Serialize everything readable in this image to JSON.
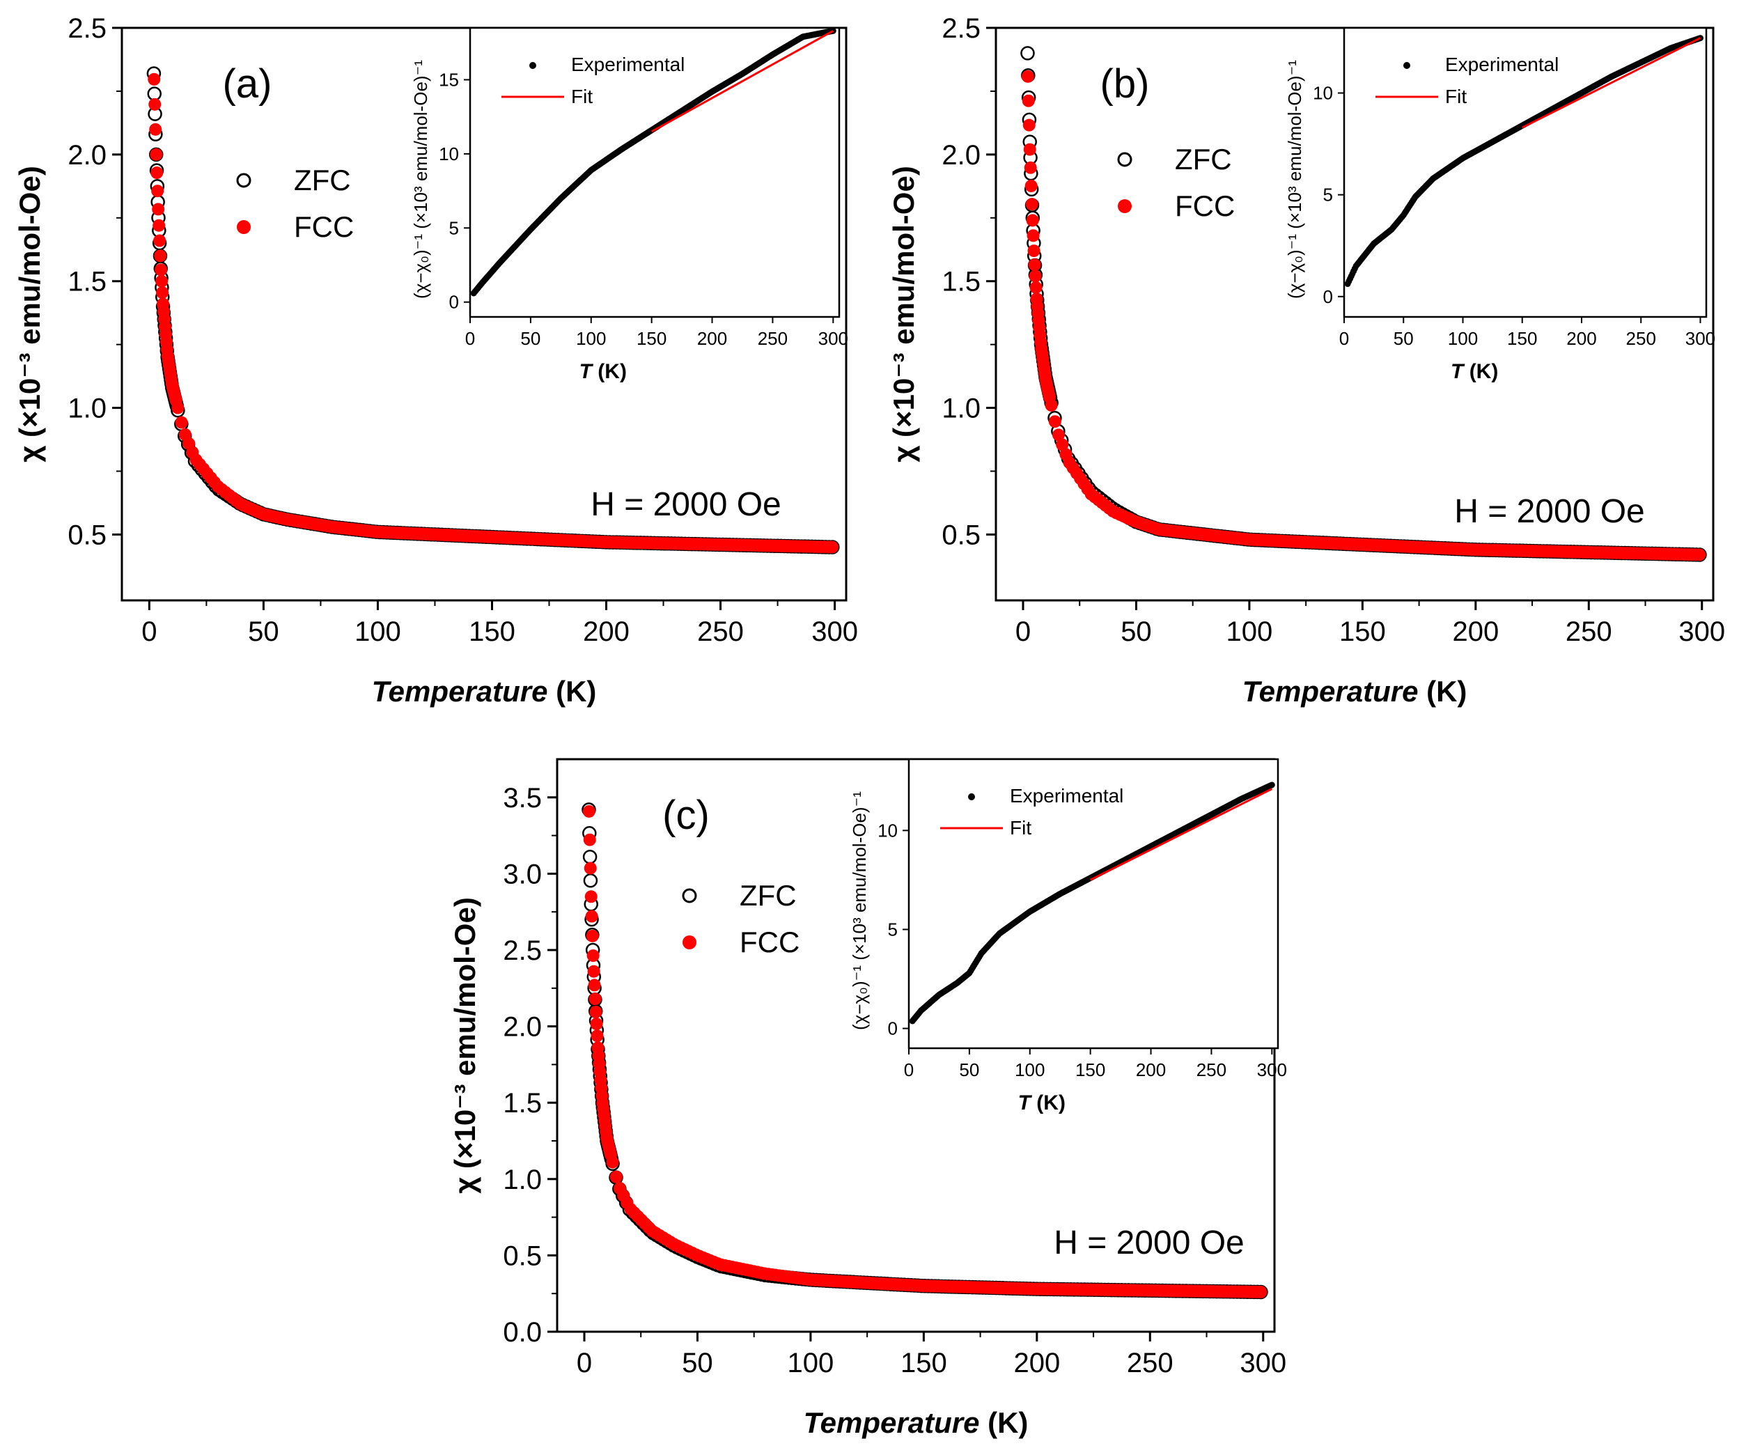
{
  "figure": {
    "colors": {
      "zfc": "#000000",
      "fcc": "#ff0000",
      "experimental": "#000000",
      "fit": "#ff0000"
    },
    "panels": [
      {
        "label": "(a)",
        "field_text": "H = 2000 Oe",
        "xlabel_italic": "Temperature",
        "xlabel_unit": "(K)",
        "ylabel": "χ (×10⁻³ emu/mol-Oe)",
        "legend": [
          "ZFC",
          "FCC"
        ],
        "chart_data": {
          "type": "scatter",
          "x_range": [
            -12,
            305
          ],
          "y_range": [
            0.24,
            2.5
          ],
          "x_ticks": [
            0,
            50,
            100,
            150,
            200,
            250,
            300
          ],
          "y_ticks": [
            0.5,
            1.0,
            1.5,
            2.0,
            2.5
          ],
          "y_tick_labels": [
            "0.5",
            "1.0",
            "1.5",
            "2.0",
            "2.5"
          ],
          "series": [
            {
              "name": "ZFC",
              "marker": "open-circle",
              "x": [
                2,
                3,
                4,
                5,
                6,
                8,
                10,
                15,
                20,
                30,
                40,
                50,
                60,
                80,
                100,
                150,
                200,
                250,
                300
              ],
              "y": [
                2.32,
                2.0,
                1.75,
                1.55,
                1.4,
                1.2,
                1.08,
                0.9,
                0.79,
                0.68,
                0.62,
                0.58,
                0.56,
                0.53,
                0.51,
                0.49,
                0.47,
                0.46,
                0.45
              ]
            },
            {
              "name": "FCC",
              "marker": "filled-circle",
              "x": [
                2,
                3,
                4,
                5,
                6,
                8,
                10,
                15,
                20,
                30,
                40,
                50,
                60,
                80,
                100,
                150,
                200,
                250,
                300
              ],
              "y": [
                2.33,
                2.0,
                1.76,
                1.56,
                1.41,
                1.21,
                1.09,
                0.91,
                0.8,
                0.69,
                0.62,
                0.58,
                0.56,
                0.53,
                0.51,
                0.49,
                0.47,
                0.46,
                0.45
              ]
            }
          ]
        },
        "inset": {
          "xlabel_italic": "T",
          "xlabel_unit": "(K)",
          "ylabel": "(χ−χ₀)⁻¹ (×10³ emu/mol-Oe)⁻¹",
          "legend": [
            "Experimental",
            "Fit"
          ],
          "chart_data": {
            "type": "line",
            "x_range": [
              0,
              305
            ],
            "y_range": [
              -1,
              18.5
            ],
            "x_ticks": [
              0,
              50,
              100,
              150,
              200,
              250,
              300
            ],
            "y_ticks": [
              0,
              5,
              10,
              15
            ],
            "y_tick_labels": [
              "0",
              "5",
              "10",
              "15"
            ],
            "series": [
              {
                "name": "Experimental",
                "x": [
                  2,
                  10,
                  25,
                  50,
                  75,
                  100,
                  125,
                  150,
                  175,
                  200,
                  225,
                  250,
                  275,
                  300
                ],
                "y": [
                  0.5,
                  1.3,
                  2.7,
                  4.9,
                  7.0,
                  8.9,
                  10.3,
                  11.6,
                  12.9,
                  14.2,
                  15.4,
                  16.7,
                  17.9,
                  18.3
                ]
              },
              {
                "name": "Fit",
                "x": [
                  150,
                  300
                ],
                "y": [
                  11.5,
                  18.3
                ]
              }
            ]
          }
        }
      },
      {
        "label": "(b)",
        "field_text": "H = 2000 Oe",
        "xlabel_italic": "Temperature",
        "xlabel_unit": "(K)",
        "ylabel": "χ (×10⁻³ emu/mol-Oe)",
        "legend": [
          "ZFC",
          "FCC"
        ],
        "chart_data": {
          "type": "scatter",
          "x_range": [
            -12,
            305
          ],
          "y_range": [
            0.24,
            2.5
          ],
          "x_ticks": [
            0,
            50,
            100,
            150,
            200,
            250,
            300
          ],
          "y_ticks": [
            0.5,
            1.0,
            1.5,
            2.0,
            2.5
          ],
          "y_tick_labels": [
            "0.5",
            "1.0",
            "1.5",
            "2.0",
            "2.5"
          ],
          "series": [
            {
              "name": "ZFC",
              "marker": "open-circle",
              "x": [
                2,
                3,
                4,
                5,
                6,
                8,
                10,
                15,
                20,
                30,
                40,
                50,
                60,
                80,
                100,
                150,
                200,
                250,
                300
              ],
              "y": [
                2.4,
                2.05,
                1.8,
                1.6,
                1.45,
                1.25,
                1.12,
                0.92,
                0.8,
                0.67,
                0.6,
                0.55,
                0.52,
                0.5,
                0.48,
                0.46,
                0.44,
                0.43,
                0.42
              ]
            },
            {
              "name": "FCC",
              "marker": "filled-circle",
              "x": [
                2,
                3,
                4,
                5,
                6,
                8,
                10,
                15,
                20,
                30,
                40,
                50,
                60,
                80,
                100,
                150,
                200,
                250,
                300
              ],
              "y": [
                2.34,
                2.02,
                1.78,
                1.58,
                1.43,
                1.24,
                1.11,
                0.91,
                0.79,
                0.66,
                0.59,
                0.55,
                0.52,
                0.5,
                0.48,
                0.46,
                0.44,
                0.43,
                0.42
              ]
            }
          ]
        },
        "inset": {
          "xlabel_italic": "T",
          "xlabel_unit": "(K)",
          "ylabel": "(χ−χ₀)⁻¹ (×10³ emu/mol-Oe)⁻¹",
          "legend": [
            "Experimental",
            "Fit"
          ],
          "chart_data": {
            "type": "line",
            "x_range": [
              0,
              305
            ],
            "y_range": [
              -1,
              13.2
            ],
            "x_ticks": [
              0,
              50,
              100,
              150,
              200,
              250,
              300
            ],
            "y_ticks": [
              0,
              5,
              10
            ],
            "y_tick_labels": [
              "0",
              "5",
              "10"
            ],
            "series": [
              {
                "name": "Experimental",
                "x": [
                  2,
                  10,
                  25,
                  40,
                  50,
                  60,
                  75,
                  100,
                  125,
                  150,
                  175,
                  200,
                  225,
                  250,
                  275,
                  300
                ],
                "y": [
                  0.5,
                  1.5,
                  2.6,
                  3.3,
                  4.0,
                  4.9,
                  5.8,
                  6.8,
                  7.6,
                  8.4,
                  9.2,
                  10.0,
                  10.8,
                  11.5,
                  12.2,
                  12.7
                ]
              },
              {
                "name": "Fit",
                "x": [
                  150,
                  300
                ],
                "y": [
                  8.3,
                  12.7
                ]
              }
            ]
          }
        }
      },
      {
        "label": "(c)",
        "field_text": "H = 2000 Oe",
        "xlabel_italic": "Temperature",
        "xlabel_unit": "(K)",
        "ylabel": "χ (×10⁻³ emu/mol-Oe)",
        "legend": [
          "ZFC",
          "FCC"
        ],
        "chart_data": {
          "type": "scatter",
          "x_range": [
            -12,
            305
          ],
          "y_range": [
            0.0,
            3.75
          ],
          "x_ticks": [
            0,
            50,
            100,
            150,
            200,
            250,
            300
          ],
          "y_ticks": [
            0.0,
            0.5,
            1.0,
            1.5,
            2.0,
            2.5,
            3.0,
            3.5
          ],
          "y_tick_labels": [
            "0.0",
            "0.5",
            "1.0",
            "1.5",
            "2.0",
            "2.5",
            "3.0",
            "3.5"
          ],
          "series": [
            {
              "name": "ZFC",
              "marker": "open-circle",
              "x": [
                2,
                3,
                4,
                5,
                6,
                8,
                10,
                15,
                20,
                30,
                40,
                50,
                60,
                80,
                100,
                150,
                200,
                250,
                300
              ],
              "y": [
                3.42,
                2.8,
                2.4,
                2.1,
                1.85,
                1.5,
                1.25,
                0.95,
                0.8,
                0.65,
                0.56,
                0.49,
                0.43,
                0.37,
                0.34,
                0.3,
                0.28,
                0.27,
                0.26
              ]
            },
            {
              "name": "FCC",
              "marker": "filled-circle",
              "x": [
                2,
                3,
                4,
                5,
                6,
                8,
                10,
                15,
                20,
                30,
                40,
                50,
                60,
                80,
                100,
                150,
                200,
                250,
                300
              ],
              "y": [
                3.47,
                2.85,
                2.42,
                2.12,
                1.86,
                1.51,
                1.26,
                0.96,
                0.81,
                0.66,
                0.57,
                0.5,
                0.44,
                0.38,
                0.34,
                0.3,
                0.28,
                0.27,
                0.26
              ]
            }
          ]
        },
        "inset": {
          "xlabel_italic": "T",
          "xlabel_unit": "(K)",
          "ylabel": "(χ−χ₀)⁻¹ (×10³ emu/mol-Oe)⁻¹",
          "legend": [
            "Experimental",
            "Fit"
          ],
          "chart_data": {
            "type": "line",
            "x_range": [
              0,
              305
            ],
            "y_range": [
              -1,
              13.6
            ],
            "x_ticks": [
              0,
              50,
              100,
              150,
              200,
              250,
              300
            ],
            "y_ticks": [
              0,
              5,
              10
            ],
            "y_tick_labels": [
              "0",
              "5",
              "10"
            ],
            "series": [
              {
                "name": "Experimental",
                "x": [
                  2,
                  10,
                  25,
                  40,
                  50,
                  60,
                  75,
                  100,
                  125,
                  150,
                  175,
                  200,
                  225,
                  250,
                  275,
                  300
                ],
                "y": [
                  0.3,
                  0.9,
                  1.7,
                  2.3,
                  2.8,
                  3.8,
                  4.8,
                  5.9,
                  6.8,
                  7.6,
                  8.4,
                  9.2,
                  10.0,
                  10.8,
                  11.6,
                  12.3
                ]
              },
              {
                "name": "Fit",
                "x": [
                  150,
                  300
                ],
                "y": [
                  7.5,
                  12.1
                ]
              }
            ]
          }
        }
      }
    ]
  }
}
